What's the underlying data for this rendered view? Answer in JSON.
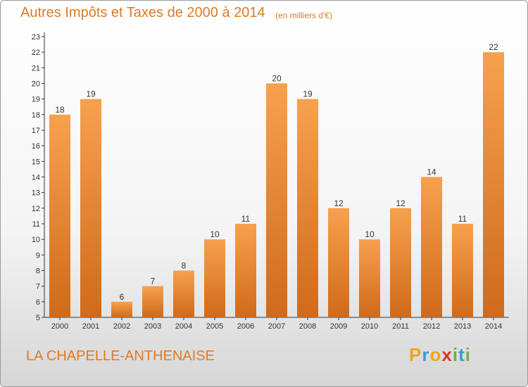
{
  "title": "Autres Impôts et Taxes de 2000 à 2014",
  "unit_label": "(en milliers d'€)",
  "commune": "LA CHAPELLE-ANTHENAISE",
  "logo_text": "Proxiti",
  "colors": {
    "bar_light": "#f7a14e",
    "bar_dark": "#cf6a1a",
    "title": "#e07a22",
    "axis": "#333333"
  },
  "chart_data": {
    "type": "bar",
    "title": "Autres Impôts et Taxes de 2000 à 2014",
    "subtitle": "(en milliers d'€)",
    "categories": [
      "2000",
      "2001",
      "2002",
      "2003",
      "2004",
      "2005",
      "2006",
      "2007",
      "2008",
      "2009",
      "2010",
      "2011",
      "2012",
      "2013",
      "2014"
    ],
    "values": [
      18,
      19,
      6,
      7,
      8,
      10,
      11,
      20,
      19,
      12,
      10,
      12,
      14,
      11,
      22
    ],
    "xlabel": "",
    "ylabel": "",
    "ylim": [
      5,
      23
    ],
    "yticks": [
      5,
      6,
      7,
      8,
      9,
      10,
      11,
      12,
      13,
      14,
      15,
      16,
      17,
      18,
      19,
      20,
      21,
      22,
      23
    ],
    "grid": false,
    "legend": "none"
  }
}
